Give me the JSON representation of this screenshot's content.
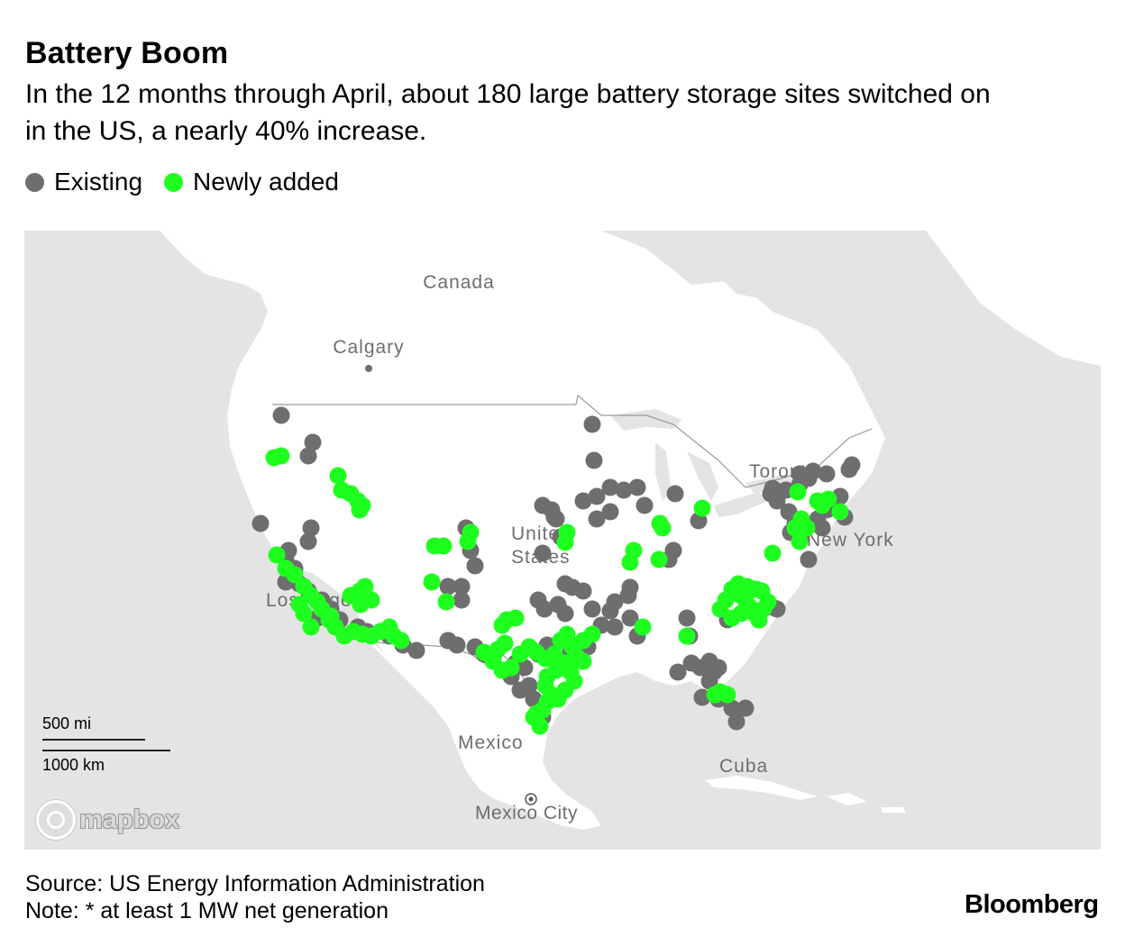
{
  "header": {
    "title": "Battery Boom",
    "subtitle": "In the 12 months through April, about 180 large battery storage sites switched on in the US, a nearly 40% increase."
  },
  "legend": {
    "existing": {
      "label": "Existing",
      "color": "#6e6e6e"
    },
    "new": {
      "label": "Newly added",
      "color": "#1fff1f"
    }
  },
  "map": {
    "labels": {
      "canada": "Canada",
      "calgary": "Calgary",
      "toronto": "Toronto",
      "united_states_1": "United",
      "united_states_2": "States",
      "new_york": "New York",
      "los_angeles": "Los Angeles",
      "mexico": "Mexico",
      "mexico_city": "Mexico City",
      "cuba": "Cuba"
    },
    "scale": {
      "mi": "500 mi",
      "km": "1000 km"
    },
    "attribution": "mapbox"
  },
  "footer": {
    "source": "Source: US Energy Information Administration",
    "note": "Note: * at least 1 MW net generation",
    "brand": "Bloomberg"
  }
}
